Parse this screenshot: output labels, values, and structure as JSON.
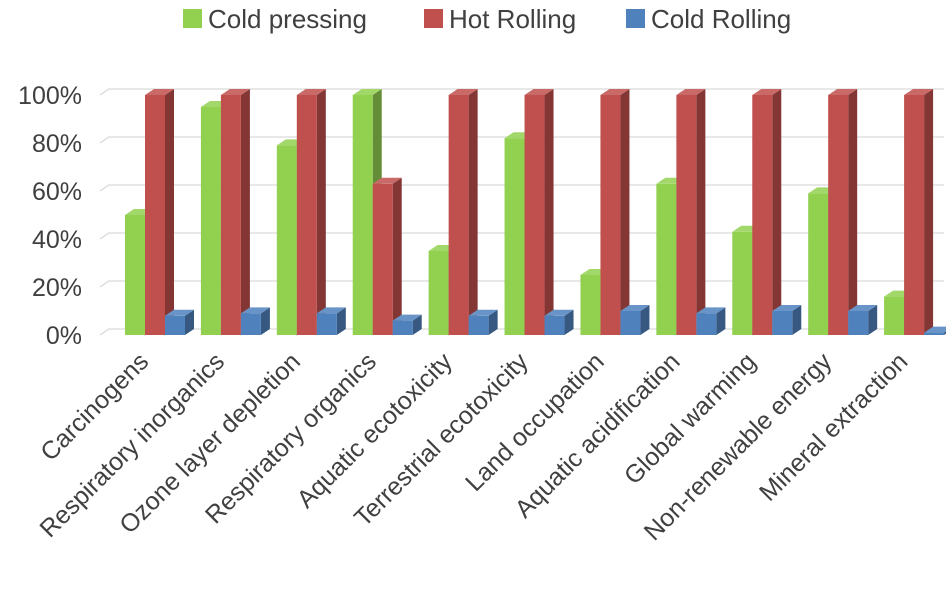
{
  "chart_data": {
    "type": "bar",
    "style": "3d-clustered-column",
    "categories": [
      "Carcinogens",
      "Respiratory inorganics",
      "Ozone layer depletion",
      "Respiratory organics",
      "Aquatic ecotoxicity",
      "Terrestrial ecotoxicity",
      "Land occupation",
      "Aquatic acidification",
      "Global warming",
      "Non-renewable energy",
      "Mineral extraction"
    ],
    "series": [
      {
        "name": "Cold pressing",
        "color": "#92D050",
        "values": [
          50,
          95,
          79,
          100,
          35,
          82,
          25,
          63,
          43,
          59,
          16
        ]
      },
      {
        "name": "Hot Rolling",
        "color": "#C0504D",
        "values": [
          100,
          100,
          100,
          63,
          100,
          100,
          100,
          100,
          100,
          100,
          100
        ]
      },
      {
        "name": "Cold Rolling",
        "color": "#4F81BD",
        "values": [
          8,
          9,
          9,
          6,
          8,
          8,
          10,
          9,
          10,
          10,
          1
        ]
      }
    ],
    "y_ticks": [
      "0%",
      "20%",
      "40%",
      "60%",
      "80%",
      "100%"
    ],
    "ylim": [
      0,
      100
    ],
    "legend_position": "top",
    "grid": true
  }
}
